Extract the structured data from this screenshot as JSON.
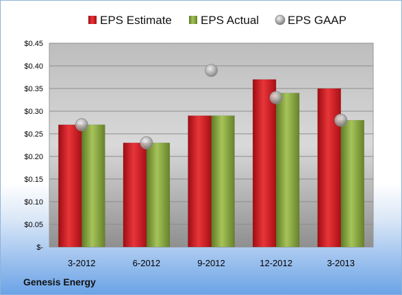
{
  "chart_data": {
    "type": "bar",
    "categories": [
      "3-2012",
      "6-2012",
      "9-2012",
      "12-2012",
      "3-2013"
    ],
    "series": [
      {
        "name": "EPS Estimate",
        "kind": "bar",
        "color": "#c8141c",
        "values": [
          0.27,
          0.23,
          0.29,
          0.37,
          0.35
        ]
      },
      {
        "name": "EPS Actual",
        "kind": "bar",
        "color": "#7a9a34",
        "values": [
          0.27,
          0.23,
          0.29,
          0.34,
          0.28
        ]
      },
      {
        "name": "EPS GAAP",
        "kind": "marker",
        "color": "#b8b8b8",
        "values": [
          0.27,
          0.23,
          0.39,
          0.33,
          0.28
        ]
      }
    ],
    "ylim": [
      0,
      0.45
    ],
    "yticks": [
      0,
      0.05,
      0.1,
      0.15,
      0.2,
      0.25,
      0.3,
      0.35,
      0.4,
      0.45
    ],
    "ytick_labels": [
      "$-",
      "$0.05",
      "$0.10",
      "$0.15",
      "$0.20",
      "$0.25",
      "$0.30",
      "$0.35",
      "$0.40",
      "$0.45"
    ],
    "grid": true,
    "legend_position": "top",
    "title": "",
    "xlabel": "",
    "ylabel": ""
  },
  "company_label": "Genesis Energy"
}
